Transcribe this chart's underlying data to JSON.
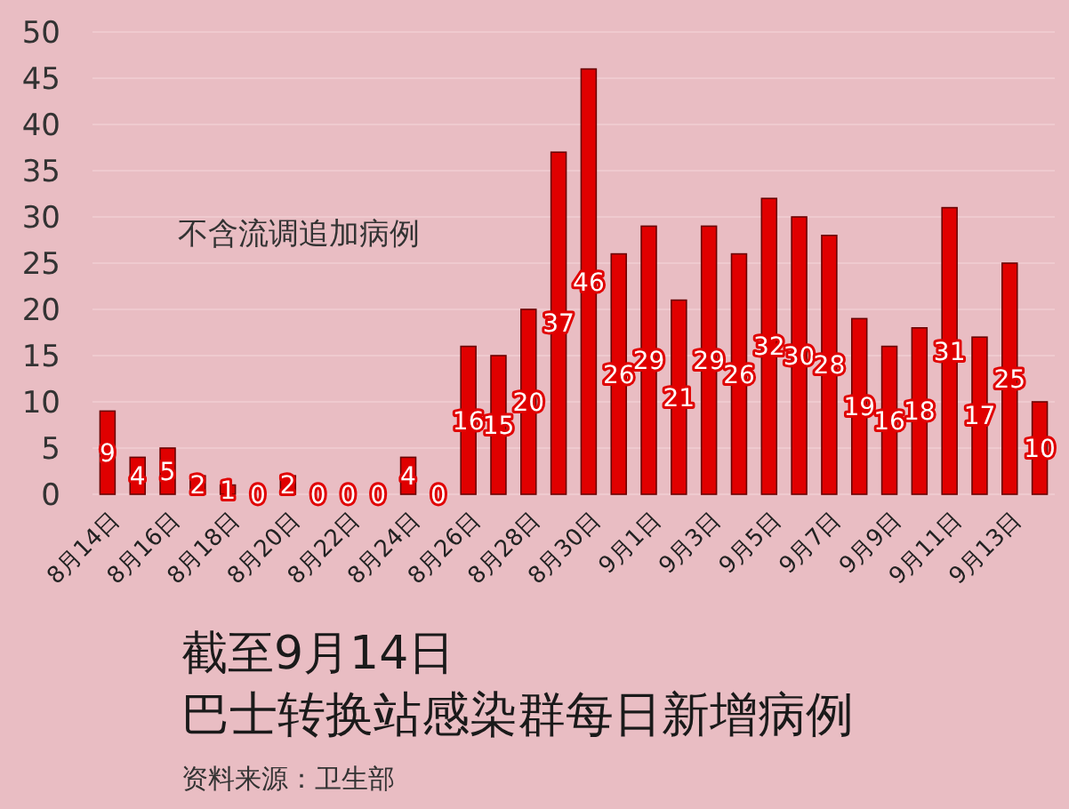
{
  "chart_data": {
    "type": "bar",
    "title": "截至9月14日",
    "subtitle": "巴士转换站感染群每日新增病例",
    "categories": [
      "8月14日",
      null,
      "8月16日",
      null,
      "8月18日",
      null,
      "8月20日",
      null,
      "8月22日",
      null,
      "8月24日",
      null,
      "8月26日",
      null,
      "8月28日",
      null,
      "8月30日",
      null,
      "9月1日",
      null,
      "9月3日",
      null,
      "9月5日",
      null,
      "9月7日",
      null,
      "9月9日",
      null,
      "9月11日",
      null,
      "9月13日",
      null
    ],
    "values": [
      9,
      4,
      5,
      2,
      1,
      0,
      2,
      0,
      0,
      0,
      4,
      0,
      16,
      15,
      20,
      37,
      46,
      26,
      29,
      21,
      29,
      26,
      32,
      30,
      28,
      19,
      16,
      18,
      31,
      17,
      25,
      10
    ],
    "color": "#e00000",
    "ylim": [
      0,
      50
    ],
    "yticks": [
      0,
      5,
      10,
      15,
      20,
      25,
      30,
      35,
      40,
      45,
      50
    ],
    "grid": "y",
    "data_labels": true,
    "annotations": [
      "不含流调追加病例",
      "资料来源：卫生部"
    ]
  }
}
